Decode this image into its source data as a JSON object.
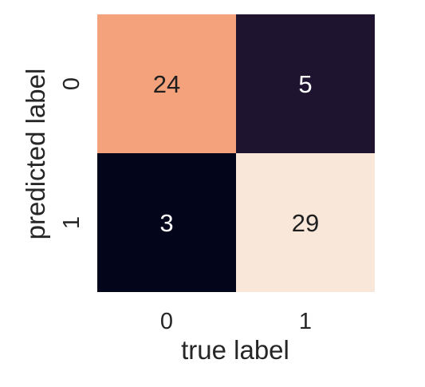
{
  "chart_data": {
    "type": "heatmap",
    "title": "",
    "xlabel": "true label",
    "ylabel": "predicted label",
    "x_categories": [
      "0",
      "1"
    ],
    "y_categories": [
      "0",
      "1"
    ],
    "cells": [
      {
        "x": "0",
        "y": "0",
        "value": 24,
        "color": "#f3a27c",
        "text_color": "#1f1f1f"
      },
      {
        "x": "1",
        "y": "0",
        "value": 5,
        "color": "#1f1430",
        "text_color": "#ffffff"
      },
      {
        "x": "0",
        "y": "1",
        "value": 3,
        "color": "#03051b",
        "text_color": "#ffffff"
      },
      {
        "x": "1",
        "y": "1",
        "value": 29,
        "color": "#f9e8d9",
        "text_color": "#1f1f1f"
      }
    ],
    "colorbar": false
  }
}
